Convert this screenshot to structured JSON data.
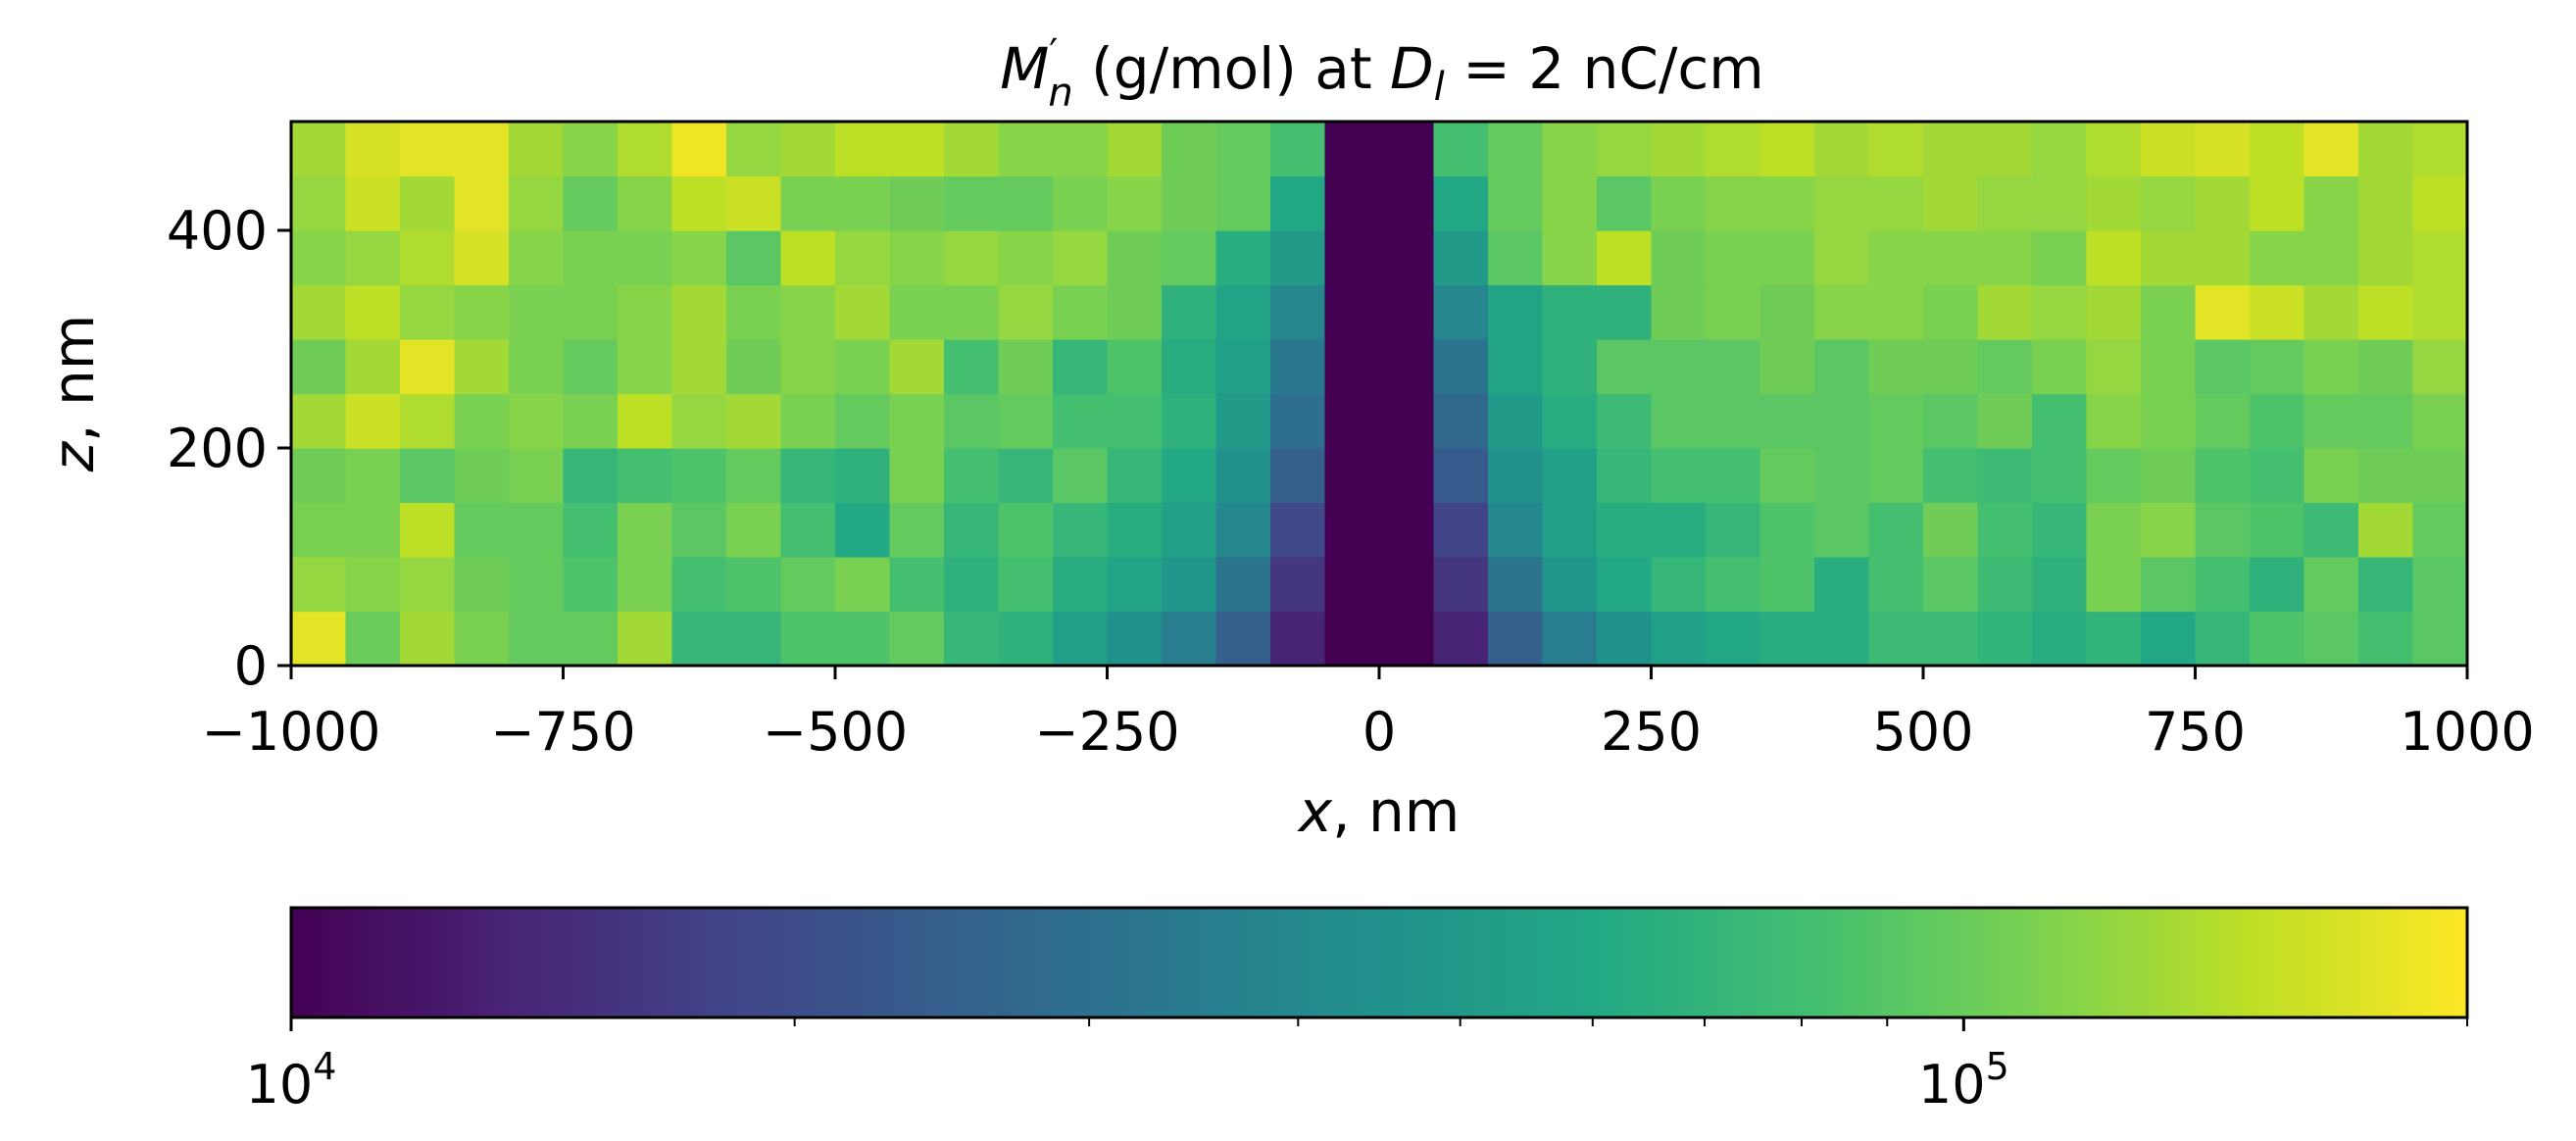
{
  "chart_data": {
    "type": "heatmap",
    "title": {
      "symbol": "M",
      "sup": "′",
      "sub": "n",
      "middle": " (g/mol) at ",
      "dsymbol": "D",
      "dsub": "l",
      "end": " = 2 nC/cm"
    },
    "xlabel": {
      "var": "x",
      "unit": ", nm"
    },
    "ylabel": {
      "var": "z",
      "unit": ", nm"
    },
    "x_extent": [
      -1000,
      1000
    ],
    "z_extent": [
      0,
      500
    ],
    "x_ticks": [
      "−1000",
      "−750",
      "−500",
      "−250",
      "0",
      "250",
      "500",
      "750",
      "1000"
    ],
    "x_tick_values": [
      -1000,
      -750,
      -500,
      -250,
      0,
      250,
      500,
      750,
      1000
    ],
    "z_ticks": [
      "0",
      "200",
      "400"
    ],
    "z_tick_values": [
      0,
      200,
      400
    ],
    "colorbar": {
      "scale": "log",
      "range": [
        10000,
        200000
      ],
      "colormap": "viridis",
      "tick_labels": [
        {
          "base": "10",
          "exp": "4",
          "value": 10000
        },
        {
          "base": "10",
          "exp": "5",
          "value": 100000
        }
      ],
      "minor_ticks": [
        20000,
        30000,
        40000,
        50000,
        60000,
        70000,
        80000,
        90000,
        200000
      ]
    },
    "note": "Cells 50 nm wide in x (40 columns) and 50 nm tall in z (10 rows); rows listed from z=0 (bottom) upward; values are normalized log-colour positions 0–1 on the colorbar",
    "rows": [
      [
        0.96,
        0.77,
        0.86,
        0.8,
        0.76,
        0.76,
        0.86,
        0.66,
        0.66,
        0.72,
        0.72,
        0.76,
        0.66,
        0.64,
        0.56,
        0.5,
        0.42,
        0.3,
        0.1,
        0.0,
        0.0,
        0.1,
        0.3,
        0.42,
        0.5,
        0.56,
        0.6,
        0.62,
        0.62,
        0.68,
        0.68,
        0.65,
        0.62,
        0.65,
        0.6,
        0.66,
        0.72,
        0.74,
        0.7,
        0.74
      ],
      [
        0.84,
        0.82,
        0.84,
        0.78,
        0.76,
        0.72,
        0.8,
        0.7,
        0.72,
        0.76,
        0.8,
        0.7,
        0.64,
        0.7,
        0.62,
        0.58,
        0.52,
        0.38,
        0.16,
        0.0,
        0.0,
        0.16,
        0.38,
        0.52,
        0.6,
        0.66,
        0.7,
        0.72,
        0.62,
        0.7,
        0.74,
        0.68,
        0.64,
        0.8,
        0.74,
        0.7,
        0.64,
        0.76,
        0.66,
        0.74
      ],
      [
        0.8,
        0.8,
        0.9,
        0.76,
        0.76,
        0.7,
        0.8,
        0.74,
        0.8,
        0.7,
        0.6,
        0.76,
        0.66,
        0.72,
        0.66,
        0.62,
        0.56,
        0.46,
        0.22,
        0.0,
        0.0,
        0.2,
        0.46,
        0.56,
        0.62,
        0.62,
        0.66,
        0.72,
        0.74,
        0.7,
        0.78,
        0.7,
        0.66,
        0.8,
        0.82,
        0.74,
        0.72,
        0.68,
        0.86,
        0.76
      ],
      [
        0.78,
        0.8,
        0.74,
        0.78,
        0.8,
        0.66,
        0.7,
        0.72,
        0.76,
        0.66,
        0.64,
        0.8,
        0.7,
        0.66,
        0.74,
        0.66,
        0.6,
        0.5,
        0.3,
        0.0,
        0.0,
        0.28,
        0.5,
        0.56,
        0.66,
        0.7,
        0.7,
        0.76,
        0.74,
        0.76,
        0.7,
        0.68,
        0.7,
        0.76,
        0.78,
        0.72,
        0.7,
        0.8,
        0.78,
        0.78
      ],
      [
        0.86,
        0.92,
        0.88,
        0.8,
        0.82,
        0.8,
        0.9,
        0.84,
        0.86,
        0.8,
        0.76,
        0.8,
        0.74,
        0.76,
        0.7,
        0.7,
        0.64,
        0.54,
        0.36,
        0.0,
        0.0,
        0.34,
        0.54,
        0.62,
        0.68,
        0.74,
        0.74,
        0.74,
        0.74,
        0.76,
        0.74,
        0.78,
        0.7,
        0.82,
        0.8,
        0.76,
        0.72,
        0.76,
        0.76,
        0.8
      ],
      [
        0.78,
        0.86,
        0.96,
        0.86,
        0.8,
        0.76,
        0.82,
        0.86,
        0.78,
        0.82,
        0.8,
        0.86,
        0.7,
        0.78,
        0.66,
        0.72,
        0.62,
        0.56,
        0.4,
        0.0,
        0.0,
        0.38,
        0.58,
        0.64,
        0.74,
        0.74,
        0.74,
        0.78,
        0.74,
        0.78,
        0.78,
        0.76,
        0.8,
        0.84,
        0.8,
        0.74,
        0.76,
        0.8,
        0.78,
        0.84
      ],
      [
        0.86,
        0.9,
        0.84,
        0.82,
        0.8,
        0.8,
        0.82,
        0.86,
        0.8,
        0.82,
        0.86,
        0.8,
        0.8,
        0.84,
        0.8,
        0.78,
        0.64,
        0.58,
        0.46,
        0.0,
        0.0,
        0.46,
        0.58,
        0.64,
        0.64,
        0.78,
        0.8,
        0.78,
        0.82,
        0.82,
        0.8,
        0.86,
        0.84,
        0.86,
        0.8,
        0.96,
        0.92,
        0.86,
        0.9,
        0.88
      ],
      [
        0.82,
        0.84,
        0.88,
        0.94,
        0.82,
        0.8,
        0.8,
        0.82,
        0.74,
        0.9,
        0.84,
        0.82,
        0.84,
        0.82,
        0.84,
        0.78,
        0.76,
        0.62,
        0.54,
        0.0,
        0.0,
        0.54,
        0.74,
        0.82,
        0.9,
        0.78,
        0.8,
        0.8,
        0.84,
        0.82,
        0.82,
        0.82,
        0.8,
        0.9,
        0.86,
        0.86,
        0.82,
        0.82,
        0.86,
        0.88
      ],
      [
        0.84,
        0.92,
        0.86,
        0.96,
        0.84,
        0.76,
        0.82,
        0.9,
        0.92,
        0.8,
        0.8,
        0.78,
        0.76,
        0.76,
        0.8,
        0.82,
        0.78,
        0.76,
        0.6,
        0.0,
        0.0,
        0.6,
        0.76,
        0.82,
        0.74,
        0.8,
        0.82,
        0.82,
        0.84,
        0.84,
        0.86,
        0.84,
        0.84,
        0.86,
        0.84,
        0.86,
        0.9,
        0.82,
        0.86,
        0.9
      ],
      [
        0.86,
        0.94,
        0.96,
        0.96,
        0.86,
        0.82,
        0.88,
        0.98,
        0.84,
        0.86,
        0.9,
        0.9,
        0.86,
        0.82,
        0.82,
        0.86,
        0.78,
        0.76,
        0.7,
        0.0,
        0.0,
        0.7,
        0.76,
        0.82,
        0.84,
        0.86,
        0.88,
        0.9,
        0.86,
        0.88,
        0.86,
        0.86,
        0.84,
        0.88,
        0.92,
        0.94,
        0.9,
        0.96,
        0.86,
        0.88
      ]
    ]
  }
}
